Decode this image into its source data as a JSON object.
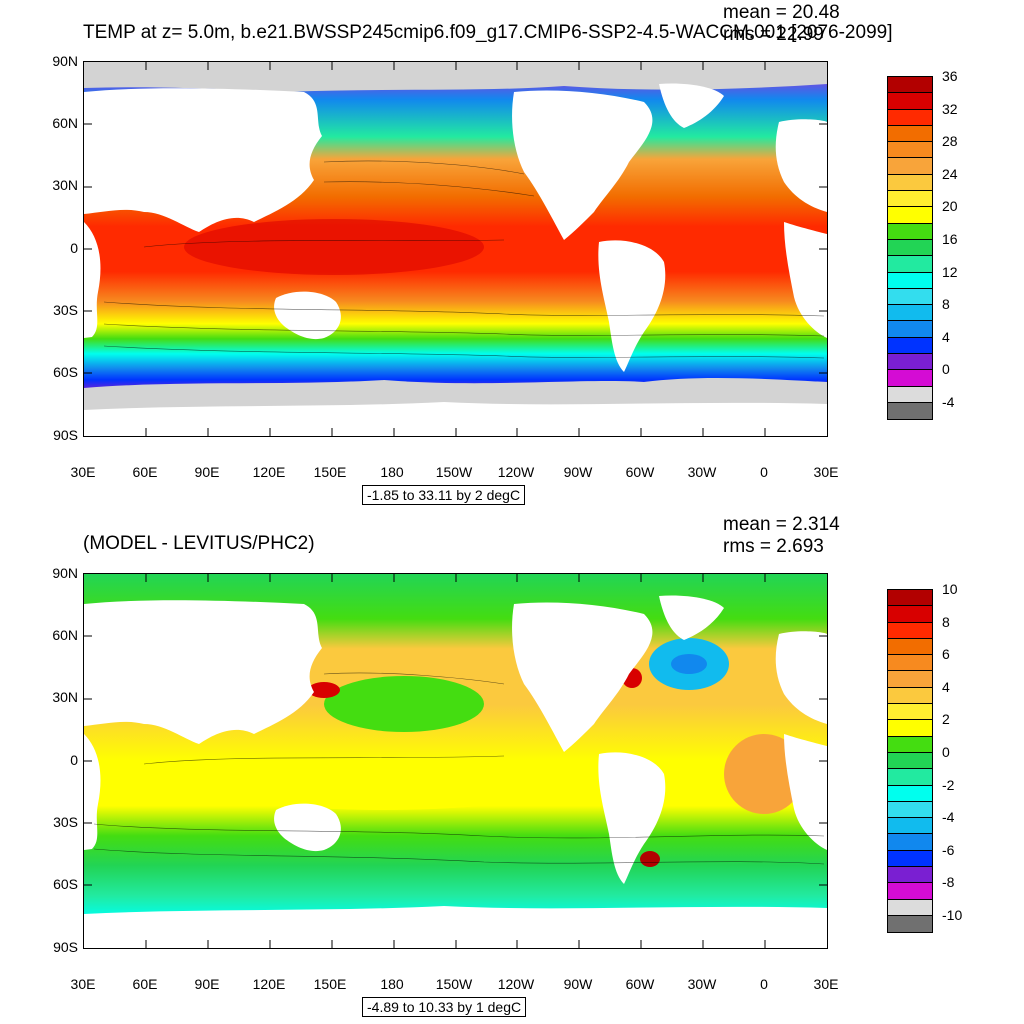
{
  "panels": [
    {
      "id": "top",
      "title": "TEMP at z=   5.0m, b.e21.BWSSP245cmip6.f09_g17.CMIP6-SSP2-4.5-WACCM.001 [2076-2099]",
      "mean_text": "mean = 20.48",
      "rms_text": "rms = 22.99",
      "range_text": "-1.85 to 33.11 by 2 degC",
      "colorbar": {
        "colors": [
          "#b20000",
          "#d80000",
          "#ff2a00",
          "#f26d00",
          "#f78a1f",
          "#f8a43a",
          "#fbc93e",
          "#ffee30",
          "#ffff00",
          "#44dd11",
          "#22d455",
          "#22eaa0",
          "#00ffee",
          "#33ddee",
          "#11bbee",
          "#1188ee",
          "#0033ff",
          "#7a1fd2",
          "#d40cd4",
          "#dcdcdc",
          "#707070"
        ],
        "labels": [
          "36",
          "32",
          "28",
          "24",
          "20",
          "16",
          "12",
          "8",
          "4",
          "0",
          "-4"
        ]
      }
    },
    {
      "id": "bottom",
      "title": "(MODEL - LEVITUS/PHC2)",
      "mean_text": "mean = 2.314",
      "rms_text": "rms = 2.693",
      "range_text": "-4.89 to 10.33 by 1 degC",
      "colorbar": {
        "colors": [
          "#b20000",
          "#d80000",
          "#ff2a00",
          "#f26d00",
          "#f78a1f",
          "#f8a43a",
          "#fbc93e",
          "#ffee30",
          "#ffff00",
          "#44dd11",
          "#22d455",
          "#22eaa0",
          "#00ffee",
          "#33ddee",
          "#11bbee",
          "#1188ee",
          "#0033ff",
          "#7a1fd2",
          "#d40cd4",
          "#dcdcdc",
          "#707070"
        ],
        "labels": [
          "10",
          "8",
          "6",
          "4",
          "2",
          "0",
          "-2",
          "-4",
          "-6",
          "-8",
          "-10"
        ]
      }
    }
  ],
  "lat_labels": [
    "90N",
    "60N",
    "30N",
    "0",
    "30S",
    "60S",
    "90S"
  ],
  "lon_labels": [
    "30E",
    "60E",
    "90E",
    "120E",
    "150E",
    "180",
    "150W",
    "120W",
    "90W",
    "60W",
    "30W",
    "0",
    "30E"
  ],
  "colors": {
    "land": "#ffffff",
    "ice": "#d3d3d3"
  }
}
